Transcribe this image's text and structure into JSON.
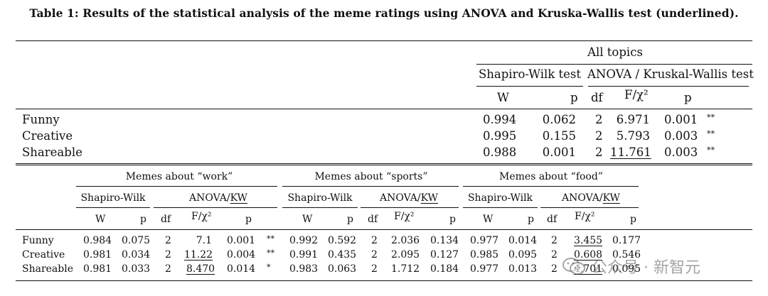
{
  "caption": "Table 1: Results of the statistical analysis of the meme ratings using ANOVA and Kruska-Wallis test (underlined).",
  "top_table": {
    "group_header": "All topics",
    "sw_header": "Shapiro-Wilk test",
    "anova_header": "ANOVA / Kruskal-Wallis test",
    "col_W": "W",
    "col_p": "p",
    "col_df": "df",
    "col_F": "F/χ²",
    "col_p2": "p",
    "rows": [
      {
        "label": "Funny",
        "W": "0.994",
        "p": "0.062",
        "df": "2",
        "F": "6.971",
        "p2": "0.001",
        "sig": "**"
      },
      {
        "label": "Creative",
        "W": "0.995",
        "p": "0.155",
        "df": "2",
        "F": "5.793",
        "p2": "0.003",
        "sig": "**"
      },
      {
        "label": "Shareable",
        "W": "0.988",
        "p": "0.001",
        "df": "2",
        "F": "11.761",
        "p2": "0.003",
        "sig": "**"
      }
    ]
  },
  "bottom_table": {
    "groups": [
      {
        "title": "Memes about “work”",
        "sw": "Shapiro-Wilk",
        "anova": "ANOVA/",
        "kw": "KW"
      },
      {
        "title": "Memes about “sports”",
        "sw": "Shapiro-Wilk",
        "anova": "ANOVA/",
        "kw": "KW"
      },
      {
        "title": "Memes about “food”",
        "sw": "Shapiro-Wilk",
        "anova": "ANOVA/",
        "kw": "KW"
      }
    ],
    "cols": {
      "W": "W",
      "p": "p",
      "df": "df",
      "F": "F/χ²"
    },
    "rows": [
      {
        "label": "Funny",
        "work": {
          "W": "0.984",
          "p": "0.075",
          "df": "2",
          "F": "7.1",
          "p2": "0.001",
          "sig": "**"
        },
        "sports": {
          "W": "0.992",
          "p": "0.592",
          "df": "2",
          "F": "2.036",
          "p2": "0.134"
        },
        "food": {
          "W": "0.977",
          "p": "0.014",
          "df": "2",
          "F": "3.455",
          "p2": "0.177"
        }
      },
      {
        "label": "Creative",
        "work": {
          "W": "0.981",
          "p": "0.034",
          "df": "2",
          "F": "11.22",
          "p2": "0.004",
          "sig": "**"
        },
        "sports": {
          "W": "0.991",
          "p": "0.435",
          "df": "2",
          "F": "2.095",
          "p2": "0.127"
        },
        "food": {
          "W": "0.985",
          "p": "0.095",
          "df": "2",
          "F": "0.608",
          "p2": "0.546"
        }
      },
      {
        "label": "Shareable",
        "work": {
          "W": "0.981",
          "p": "0.033",
          "df": "2",
          "F": "8.470",
          "p2": "0.014",
          "sig": "*"
        },
        "sports": {
          "W": "0.983",
          "p": "0.063",
          "df": "2",
          "F": "1.712",
          "p2": "0.184"
        },
        "food": {
          "W": "0.977",
          "p": "0.013",
          "df": "2",
          "F": "4.701",
          "p2": "0.095"
        }
      }
    ]
  },
  "watermark": {
    "text": "公众号 · 新智元",
    "icon": "wechat-icon"
  }
}
